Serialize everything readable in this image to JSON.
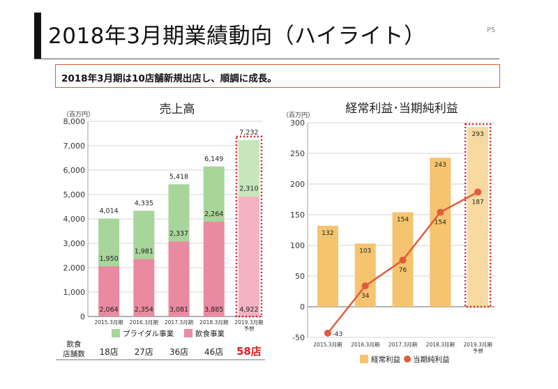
{
  "header": {
    "title": "2018年3月期業績動向（ハイライト）",
    "page": "P5",
    "summary": "2018年3月期は10店舗新規出店し、順調に成長。"
  },
  "colors": {
    "wedding": "#a7d59a",
    "food": "#e98aa0",
    "forecast_wedding": "#c8e6be",
    "forecast_food": "#f3b3c2",
    "ordinary": "#f4c46f",
    "ordinary_forecast": "#f8d9a0",
    "net_line": "#e35a3c",
    "forecast_border": "#d92020",
    "accent": "#d95f2b"
  },
  "chart_data": [
    {
      "type": "bar",
      "stacked": true,
      "title": "売上高",
      "unit": "（百万円）",
      "categories": [
        "2015.3月期",
        "2016.3月期",
        "2017.3月期",
        "2018.3月期",
        "2019.3月期"
      ],
      "forecast_note": "予想",
      "forecast_index": 4,
      "series": [
        {
          "name": "飲食事業",
          "values": [
            2064,
            2354,
            3081,
            3885,
            4922
          ]
        },
        {
          "name": "ブライダル事業",
          "values": [
            1950,
            1981,
            2337,
            2264,
            2310
          ]
        }
      ],
      "totals": [
        4014,
        4335,
        5418,
        6149,
        7232
      ],
      "ylim": [
        0,
        8000
      ],
      "yticks": [
        0,
        1000,
        2000,
        3000,
        4000,
        5000,
        6000,
        7000,
        8000
      ],
      "ytick_labels": [
        "0",
        "1,000",
        "2,000",
        "3,000",
        "4,000",
        "5,000",
        "6,000",
        "7,000",
        "8,000"
      ],
      "legend_position": "bottom",
      "store_table": {
        "label_line1": "飲食",
        "label_line2": "店舗数",
        "values": [
          "18店",
          "27店",
          "36店",
          "46店",
          "58店"
        ]
      }
    },
    {
      "type": "bar+line",
      "title": "経常利益･当期純利益",
      "unit": "（百万円）",
      "categories": [
        "2015.3月期",
        "2016.3月期",
        "2017.3月期",
        "2018.3月期",
        "2019.3月期"
      ],
      "forecast_note": "予想",
      "forecast_index": 4,
      "series": [
        {
          "name": "経常利益",
          "kind": "bar",
          "values": [
            132,
            103,
            154,
            243,
            293
          ]
        },
        {
          "name": "当期純利益",
          "kind": "line",
          "values": [
            -43,
            34,
            76,
            154,
            187
          ]
        }
      ],
      "ylim": [
        -50,
        300
      ],
      "yticks": [
        -50,
        0,
        50,
        100,
        150,
        200,
        250,
        300
      ],
      "legend_position": "bottom"
    }
  ]
}
